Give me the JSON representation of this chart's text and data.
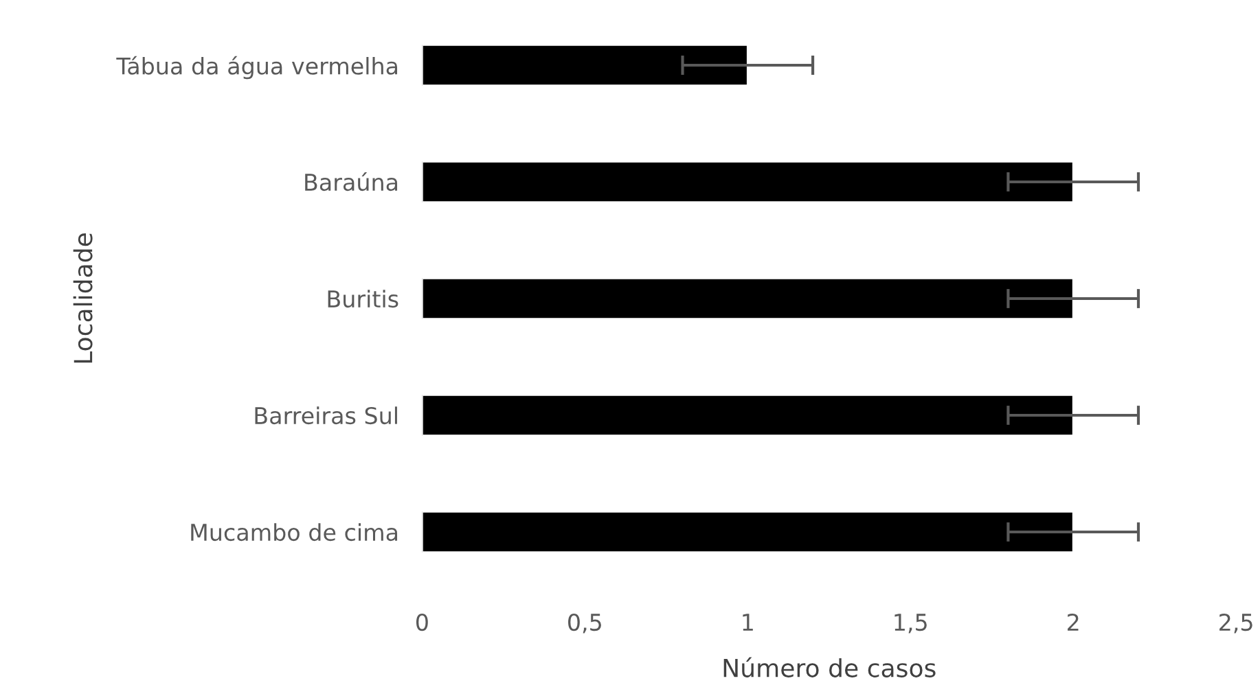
{
  "chart_data": {
    "type": "bar",
    "orientation": "horizontal",
    "xlabel": "Número de casos",
    "ylabel": "Localidade",
    "categories": [
      "Tábua da água vermelha",
      "Baraúna",
      "Buritis",
      "Barreiras Sul",
      "Mucambo de cima"
    ],
    "values": [
      1,
      2,
      2,
      2,
      2
    ],
    "errors": [
      0.2,
      0.2,
      0.2,
      0.2,
      0.2
    ],
    "color": "#000000",
    "xlim": [
      0,
      2.5
    ],
    "xticks": [
      0,
      {
        "value": 0.5,
        "label": "0,5"
      },
      1,
      {
        "value": 1.5,
        "label": "1,5"
      },
      2,
      {
        "value": 2.5,
        "label": "2,5"
      }
    ],
    "grid": false,
    "legend": false
  }
}
